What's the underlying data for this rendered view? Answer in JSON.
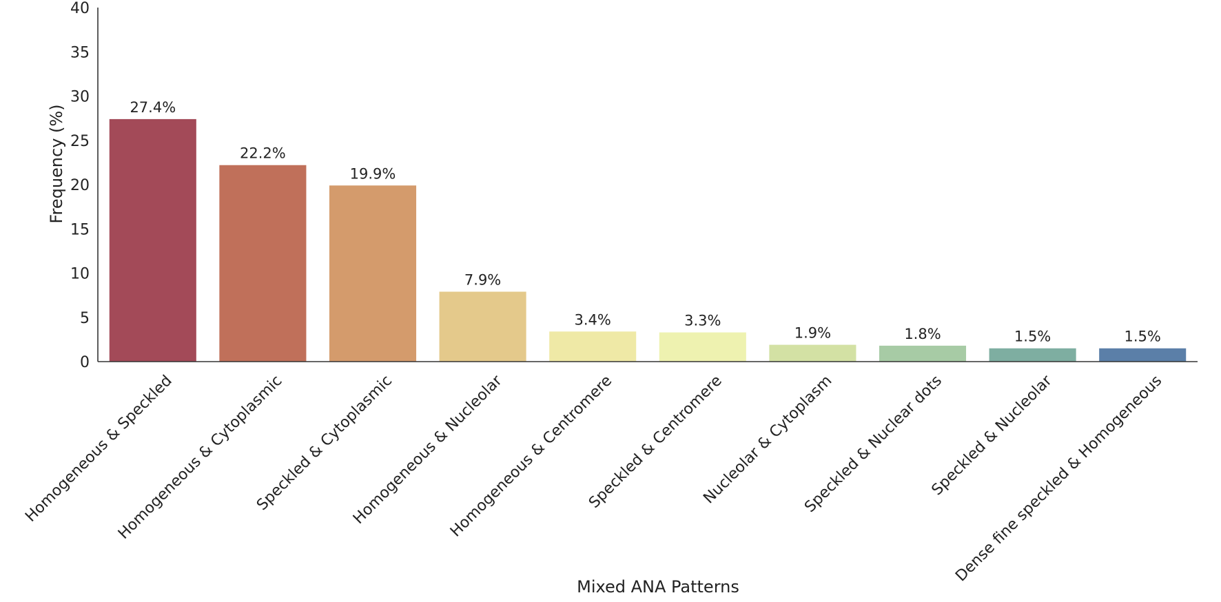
{
  "chart_data": {
    "type": "bar",
    "title": "",
    "xlabel": "Mixed ANA Patterns",
    "ylabel": "Frequency (%)",
    "ylim": [
      0,
      40
    ],
    "yticks": [
      0,
      5,
      10,
      15,
      20,
      25,
      30,
      35,
      40
    ],
    "grid": false,
    "categories": [
      "Homogeneous & Speckled",
      "Homogeneous & Cytoplasmic",
      "Speckled & Cytoplasmic",
      "Homogeneous & Nucleolar",
      "Homogeneous & Centromere",
      "Speckled & Centromere",
      "Nucleolar & Cytoplasm",
      "Speckled & Nuclear dots",
      "Speckled & Nucleolar",
      "Dense fine speckled & Homogeneous"
    ],
    "values": [
      27.4,
      22.2,
      19.9,
      7.9,
      3.4,
      3.3,
      1.9,
      1.8,
      1.5,
      1.5
    ],
    "data_labels": [
      "27.4%",
      "22.2%",
      "19.9%",
      "7.9%",
      "3.4%",
      "3.3%",
      "1.9%",
      "1.8%",
      "1.5%",
      "1.5%"
    ],
    "colors": [
      "#a34a58",
      "#c0705a",
      "#d49b6c",
      "#e4c98b",
      "#efe9a6",
      "#eef2b0",
      "#d3e1a4",
      "#a7cba5",
      "#7eaea1",
      "#5b7fa8"
    ]
  }
}
